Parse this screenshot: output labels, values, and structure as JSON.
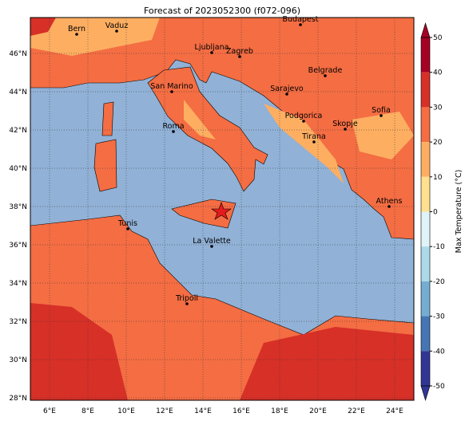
{
  "title": "Forecast of 2023052300 (f072-096)",
  "map": {
    "lon_ticks": [
      "6°E",
      "8°E",
      "10°E",
      "12°E",
      "14°E",
      "16°E",
      "18°E",
      "20°E",
      "22°E",
      "24°E"
    ],
    "lat_ticks": [
      "46°N",
      "44°N",
      "42°N",
      "40°N",
      "38°N",
      "36°N",
      "34°N",
      "32°N",
      "30°N",
      "28°N"
    ],
    "cities": [
      "Bern",
      "Vaduz",
      "Budapest",
      "Ljubljana",
      "Zagreb",
      "Belgrade",
      "San Marino",
      "Sarajevo",
      "Sofia",
      "Roma",
      "Podgorica",
      "Skopje",
      "Tirana",
      "Athens",
      "Tunis",
      "La Valette",
      "Tripoli"
    ]
  },
  "colorbar": {
    "label": "Max Temperature (°C)",
    "ticks": [
      50,
      40,
      30,
      20,
      10,
      0,
      -10,
      -20,
      -30,
      -40,
      -50
    ],
    "colors": [
      "#a50026",
      "#d73027",
      "#f46d43",
      "#fdae61",
      "#fee090",
      "#e0f3f8",
      "#abd9e9",
      "#74add1",
      "#4575b4",
      "#313695"
    ]
  }
}
